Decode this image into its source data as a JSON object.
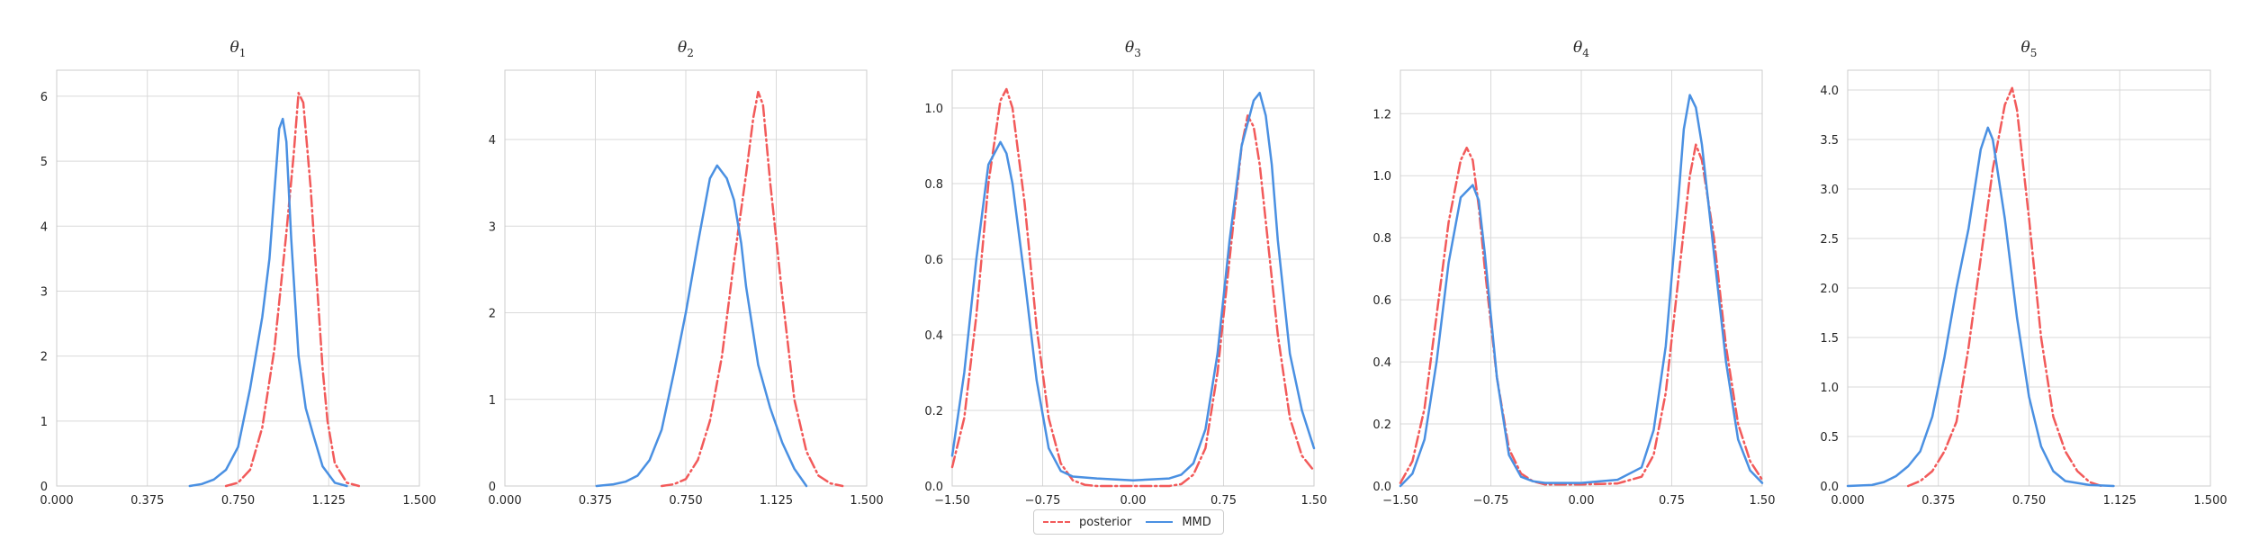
{
  "colors": {
    "posterior": "#f25a5a",
    "mmd": "#4a90e2"
  },
  "legend": {
    "posterior_label": "posterior",
    "mmd_label": "MMD"
  },
  "chart_data": [
    {
      "type": "line",
      "title": "θ1",
      "title_sub": "1",
      "title_base": "θ",
      "xlim": [
        0,
        1.5
      ],
      "ylim": [
        0,
        6.4
      ],
      "xticks": [
        0,
        0.375,
        0.75,
        1.125,
        1.5
      ],
      "xtick_labels": [
        "0.000",
        "0.375",
        "0.750",
        "1.125",
        "1.500"
      ],
      "yticks": [
        0,
        1,
        2,
        3,
        4,
        5,
        6
      ],
      "ytick_labels": [
        "0",
        "1",
        "2",
        "3",
        "4",
        "5",
        "6"
      ],
      "grid": true,
      "series": [
        {
          "name": "posterior",
          "style": "dashdot",
          "x": [
            0.7,
            0.75,
            0.8,
            0.85,
            0.9,
            0.95,
            0.98,
            1.0,
            1.02,
            1.05,
            1.08,
            1.1,
            1.12,
            1.15,
            1.2,
            1.25
          ],
          "y": [
            0.0,
            0.05,
            0.25,
            0.9,
            2.1,
            3.9,
            5.1,
            6.05,
            5.9,
            4.6,
            2.9,
            1.8,
            1.0,
            0.35,
            0.05,
            0.0
          ]
        },
        {
          "name": "MMD",
          "style": "solid",
          "x": [
            0.55,
            0.6,
            0.65,
            0.7,
            0.75,
            0.8,
            0.85,
            0.88,
            0.9,
            0.92,
            0.935,
            0.95,
            0.97,
            1.0,
            1.03,
            1.06,
            1.1,
            1.15,
            1.2
          ],
          "y": [
            0.0,
            0.03,
            0.1,
            0.25,
            0.6,
            1.5,
            2.6,
            3.5,
            4.5,
            5.5,
            5.65,
            5.3,
            3.8,
            2.0,
            1.2,
            0.8,
            0.3,
            0.05,
            0.0
          ]
        }
      ]
    },
    {
      "type": "line",
      "title": "θ2",
      "title_sub": "2",
      "title_base": "θ",
      "xlim": [
        0,
        1.5
      ],
      "ylim": [
        0,
        4.8
      ],
      "xticks": [
        0,
        0.375,
        0.75,
        1.125,
        1.5
      ],
      "xtick_labels": [
        "0.000",
        "0.375",
        "0.750",
        "1.125",
        "1.500"
      ],
      "yticks": [
        0,
        1,
        2,
        3,
        4
      ],
      "ytick_labels": [
        "0",
        "1",
        "2",
        "3",
        "4"
      ],
      "grid": true,
      "series": [
        {
          "name": "posterior",
          "style": "dashdot",
          "x": [
            0.65,
            0.7,
            0.75,
            0.8,
            0.85,
            0.9,
            0.95,
            1.0,
            1.03,
            1.05,
            1.07,
            1.1,
            1.15,
            1.2,
            1.25,
            1.3,
            1.35,
            1.4
          ],
          "y": [
            0.0,
            0.02,
            0.08,
            0.3,
            0.75,
            1.5,
            2.6,
            3.6,
            4.25,
            4.55,
            4.4,
            3.5,
            2.2,
            1.0,
            0.4,
            0.12,
            0.03,
            0.0
          ]
        },
        {
          "name": "MMD",
          "style": "solid",
          "x": [
            0.38,
            0.45,
            0.5,
            0.55,
            0.6,
            0.65,
            0.7,
            0.75,
            0.8,
            0.85,
            0.88,
            0.92,
            0.95,
            0.98,
            1.0,
            1.05,
            1.1,
            1.15,
            1.2,
            1.25
          ],
          "y": [
            0.0,
            0.02,
            0.05,
            0.12,
            0.3,
            0.65,
            1.3,
            2.0,
            2.8,
            3.55,
            3.7,
            3.55,
            3.3,
            2.8,
            2.3,
            1.4,
            0.9,
            0.5,
            0.2,
            0.0
          ]
        }
      ]
    },
    {
      "type": "line",
      "title": "θ3",
      "title_sub": "3",
      "title_base": "θ",
      "xlim": [
        -1.5,
        1.5
      ],
      "ylim": [
        0,
        1.1
      ],
      "xticks": [
        -1.5,
        -0.75,
        0,
        0.75,
        1.5
      ],
      "xtick_labels": [
        "−1.50",
        "−0.75",
        "0.00",
        "0.75",
        "1.50"
      ],
      "yticks": [
        0,
        0.2,
        0.4,
        0.6,
        0.8,
        1.0
      ],
      "ytick_labels": [
        "0.0",
        "0.2",
        "0.4",
        "0.6",
        "0.8",
        "1.0"
      ],
      "grid": true,
      "series": [
        {
          "name": "posterior",
          "style": "dashdot",
          "x": [
            -1.5,
            -1.4,
            -1.3,
            -1.2,
            -1.1,
            -1.05,
            -1.0,
            -0.9,
            -0.8,
            -0.7,
            -0.6,
            -0.5,
            -0.4,
            -0.3,
            0.0,
            0.3,
            0.4,
            0.5,
            0.6,
            0.7,
            0.8,
            0.9,
            0.95,
            1.0,
            1.05,
            1.1,
            1.2,
            1.3,
            1.4,
            1.5
          ],
          "y": [
            0.05,
            0.18,
            0.45,
            0.8,
            1.02,
            1.05,
            1.0,
            0.75,
            0.42,
            0.18,
            0.06,
            0.015,
            0.003,
            0.0,
            0.0,
            0.0,
            0.005,
            0.03,
            0.1,
            0.3,
            0.6,
            0.9,
            0.98,
            0.95,
            0.85,
            0.7,
            0.4,
            0.18,
            0.08,
            0.04
          ]
        },
        {
          "name": "MMD",
          "style": "solid",
          "x": [
            -1.5,
            -1.4,
            -1.3,
            -1.2,
            -1.1,
            -1.05,
            -1.0,
            -0.9,
            -0.8,
            -0.7,
            -0.6,
            -0.5,
            -0.3,
            0.0,
            0.3,
            0.4,
            0.5,
            0.6,
            0.7,
            0.8,
            0.9,
            1.0,
            1.05,
            1.1,
            1.15,
            1.2,
            1.3,
            1.4,
            1.5
          ],
          "y": [
            0.08,
            0.3,
            0.6,
            0.85,
            0.91,
            0.88,
            0.8,
            0.55,
            0.28,
            0.1,
            0.04,
            0.025,
            0.02,
            0.015,
            0.02,
            0.03,
            0.06,
            0.15,
            0.35,
            0.65,
            0.9,
            1.02,
            1.04,
            0.98,
            0.85,
            0.65,
            0.35,
            0.2,
            0.1
          ]
        }
      ]
    },
    {
      "type": "line",
      "title": "θ4",
      "title_sub": "4",
      "title_base": "θ",
      "xlim": [
        -1.5,
        1.5
      ],
      "ylim": [
        0,
        1.34
      ],
      "xticks": [
        -1.5,
        -0.75,
        0,
        0.75,
        1.5
      ],
      "xtick_labels": [
        "−1.50",
        "−0.75",
        "0.00",
        "0.75",
        "1.50"
      ],
      "yticks": [
        0,
        0.2,
        0.4,
        0.6,
        0.8,
        1.0,
        1.2
      ],
      "ytick_labels": [
        "0.0",
        "0.2",
        "0.4",
        "0.6",
        "0.8",
        "1.0",
        "1.2"
      ],
      "grid": true,
      "series": [
        {
          "name": "posterior",
          "style": "dashdot",
          "x": [
            -1.5,
            -1.4,
            -1.3,
            -1.2,
            -1.1,
            -1.0,
            -0.95,
            -0.9,
            -0.85,
            -0.8,
            -0.7,
            -0.6,
            -0.5,
            -0.4,
            -0.3,
            0.0,
            0.3,
            0.5,
            0.6,
            0.7,
            0.8,
            0.9,
            0.95,
            1.0,
            1.1,
            1.2,
            1.3,
            1.4,
            1.5
          ],
          "y": [
            0.01,
            0.08,
            0.25,
            0.55,
            0.85,
            1.05,
            1.09,
            1.05,
            0.9,
            0.7,
            0.35,
            0.12,
            0.04,
            0.015,
            0.005,
            0.005,
            0.008,
            0.03,
            0.1,
            0.3,
            0.65,
            1.0,
            1.1,
            1.05,
            0.8,
            0.45,
            0.2,
            0.08,
            0.02
          ]
        },
        {
          "name": "MMD",
          "style": "solid",
          "x": [
            -1.5,
            -1.4,
            -1.3,
            -1.2,
            -1.1,
            -1.0,
            -0.9,
            -0.85,
            -0.8,
            -0.7,
            -0.6,
            -0.5,
            -0.4,
            -0.3,
            0.0,
            0.3,
            0.5,
            0.6,
            0.7,
            0.8,
            0.85,
            0.9,
            0.95,
            1.0,
            1.1,
            1.2,
            1.3,
            1.4,
            1.5
          ],
          "y": [
            0.0,
            0.04,
            0.15,
            0.4,
            0.72,
            0.93,
            0.97,
            0.92,
            0.75,
            0.35,
            0.1,
            0.03,
            0.015,
            0.01,
            0.01,
            0.02,
            0.06,
            0.18,
            0.45,
            0.9,
            1.15,
            1.26,
            1.22,
            1.1,
            0.75,
            0.4,
            0.15,
            0.05,
            0.01
          ]
        }
      ]
    },
    {
      "type": "line",
      "title": "θ5",
      "title_sub": "5",
      "title_base": "θ",
      "xlim": [
        0,
        1.5
      ],
      "ylim": [
        0,
        4.2
      ],
      "xticks": [
        0,
        0.375,
        0.75,
        1.125,
        1.5
      ],
      "xtick_labels": [
        "0.000",
        "0.375",
        "0.750",
        "1.125",
        "1.500"
      ],
      "yticks": [
        0,
        0.5,
        1.0,
        1.5,
        2.0,
        2.5,
        3.0,
        3.5,
        4.0
      ],
      "ytick_labels": [
        "0.0",
        "0.5",
        "1.0",
        "1.5",
        "2.0",
        "2.5",
        "3.0",
        "3.5",
        "4.0"
      ],
      "grid": true,
      "series": [
        {
          "name": "posterior",
          "style": "dashdot",
          "x": [
            0.25,
            0.3,
            0.35,
            0.4,
            0.45,
            0.5,
            0.55,
            0.6,
            0.65,
            0.68,
            0.7,
            0.75,
            0.8,
            0.85,
            0.9,
            0.95,
            1.0,
            1.05
          ],
          "y": [
            0.0,
            0.05,
            0.15,
            0.35,
            0.65,
            1.4,
            2.3,
            3.2,
            3.85,
            4.02,
            3.8,
            2.7,
            1.5,
            0.7,
            0.35,
            0.15,
            0.04,
            0.0
          ]
        },
        {
          "name": "MMD",
          "style": "solid",
          "x": [
            0.0,
            0.1,
            0.15,
            0.2,
            0.25,
            0.3,
            0.35,
            0.4,
            0.45,
            0.5,
            0.55,
            0.58,
            0.6,
            0.65,
            0.7,
            0.75,
            0.8,
            0.85,
            0.9,
            1.0,
            1.1
          ],
          "y": [
            0.0,
            0.01,
            0.04,
            0.1,
            0.2,
            0.35,
            0.7,
            1.3,
            2.0,
            2.6,
            3.4,
            3.62,
            3.5,
            2.7,
            1.7,
            0.9,
            0.4,
            0.15,
            0.05,
            0.01,
            0.0
          ]
        }
      ]
    }
  ]
}
